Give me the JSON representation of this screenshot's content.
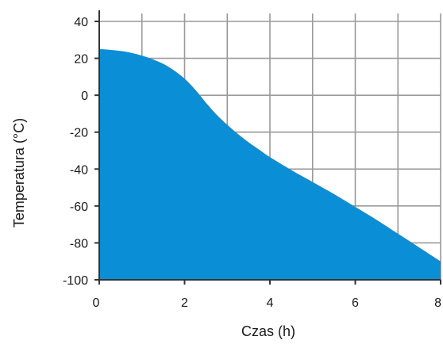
{
  "chart_data": {
    "type": "area",
    "title": "",
    "xlabel": "Czas (h)",
    "ylabel": "Temperatura (°C)",
    "xlim": [
      0,
      8
    ],
    "ylim": [
      -100,
      40
    ],
    "x_ticks": [
      0,
      2,
      4,
      6,
      8
    ],
    "x_tick_labels": [
      "0",
      "2",
      "4",
      "6",
      "8"
    ],
    "y_ticks": [
      40,
      20,
      0,
      -20,
      -40,
      -60,
      -80,
      -100
    ],
    "y_tick_labels": [
      "40",
      "20",
      "0",
      "-20",
      "-40",
      "-60",
      "-80",
      "-100"
    ],
    "x_minor_gridlines": [
      1,
      3,
      5,
      7
    ],
    "grid": true,
    "fill_color": "#0a8fd6",
    "grid_color": "#9a9a9a",
    "axis_color": "#333333",
    "series": [
      {
        "x": [
          0,
          0.25,
          0.5,
          0.75,
          1.0,
          1.25,
          1.5,
          1.75,
          2.0,
          2.25,
          2.5,
          2.75,
          3.0,
          3.25,
          3.5,
          3.75,
          4.0,
          4.5,
          5.0,
          5.5,
          6.0,
          6.5,
          7.0,
          7.5,
          8.0
        ],
        "y": [
          25,
          24.6,
          24,
          23,
          21.5,
          19.5,
          17,
          13.5,
          9,
          3,
          -4,
          -10.5,
          -16,
          -21,
          -25.5,
          -29.5,
          -33.5,
          -40.5,
          -47,
          -53.5,
          -60.5,
          -67.5,
          -75,
          -82.5,
          -90
        ]
      }
    ]
  }
}
